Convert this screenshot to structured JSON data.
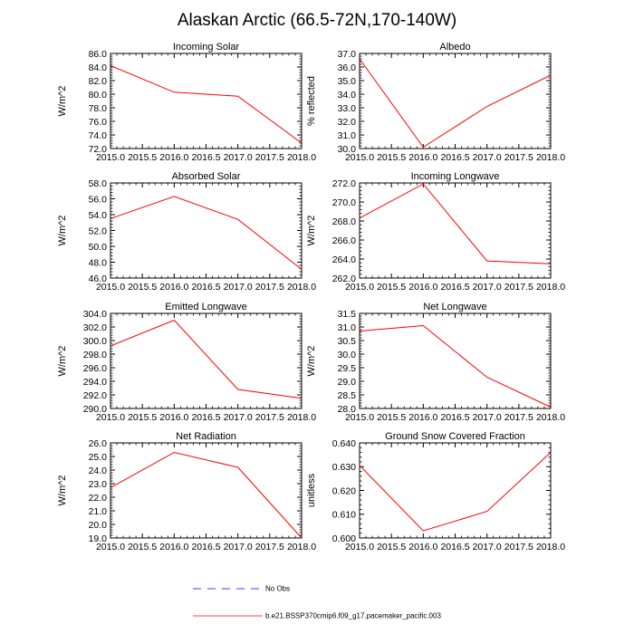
{
  "page_title": "Alaskan Arctic (66.5-72N,170-140W)",
  "colors": {
    "model_line": "#ff0000",
    "obs_line": "#0000ff",
    "axis": "#000000"
  },
  "legend": [
    {
      "label": "No Obs",
      "style": "dashed",
      "color": "#0000ff"
    },
    {
      "label": "b.e21.BSSP370cmip6.f09_g17.pacemaker_pacific.003",
      "style": "solid",
      "color": "#ff0000"
    }
  ],
  "chart_data": [
    {
      "type": "line",
      "title": "Incoming Solar",
      "ylabel": "W/m^2",
      "x": [
        2015,
        2016,
        2017,
        2018
      ],
      "xticks": [
        "2015.0",
        "2015.5",
        "2016.0",
        "2016.5",
        "2017.0",
        "2017.5",
        "2018.0"
      ],
      "xlim": [
        2015,
        2018
      ],
      "ylim": [
        72,
        86
      ],
      "yticks": [
        "72.0",
        "74.0",
        "76.0",
        "78.0",
        "80.0",
        "82.0",
        "84.0",
        "86.0"
      ],
      "series": [
        {
          "name": "b.e21.BSSP370cmip6.f09_g17.pacemaker_pacific.003",
          "values": [
            84.2,
            80.3,
            79.7,
            72.8
          ]
        }
      ]
    },
    {
      "type": "line",
      "title": "Albedo",
      "ylabel": "% reflected",
      "x": [
        2015,
        2016,
        2017,
        2018
      ],
      "xticks": [
        "2015.0",
        "2015.5",
        "2016.0",
        "2016.5",
        "2017.0",
        "2017.5",
        "2018.0"
      ],
      "xlim": [
        2015,
        2018
      ],
      "ylim": [
        30,
        37
      ],
      "yticks": [
        "30.0",
        "31.0",
        "32.0",
        "33.0",
        "34.0",
        "35.0",
        "36.0",
        "37.0"
      ],
      "series": [
        {
          "name": "b.e21.BSSP370cmip6.f09_g17.pacemaker_pacific.003",
          "values": [
            36.6,
            30.1,
            33.1,
            35.4
          ]
        }
      ]
    },
    {
      "type": "line",
      "title": "Absorbed Solar",
      "ylabel": "W/m^2",
      "x": [
        2015,
        2016,
        2017,
        2018
      ],
      "xticks": [
        "2015.0",
        "2015.5",
        "2016.0",
        "2016.5",
        "2017.0",
        "2017.5",
        "2018.0"
      ],
      "xlim": [
        2015,
        2018
      ],
      "ylim": [
        46,
        58
      ],
      "yticks": [
        "46.0",
        "48.0",
        "50.0",
        "52.0",
        "54.0",
        "56.0",
        "58.0"
      ],
      "series": [
        {
          "name": "b.e21.BSSP370cmip6.f09_g17.pacemaker_pacific.003",
          "values": [
            53.5,
            56.3,
            53.4,
            47.1
          ]
        }
      ]
    },
    {
      "type": "line",
      "title": "Incoming Longwave",
      "ylabel": "W/m^2",
      "x": [
        2015,
        2016,
        2017,
        2018
      ],
      "xticks": [
        "2015.0",
        "2015.5",
        "2016.0",
        "2016.5",
        "2017.0",
        "2017.5",
        "2018.0"
      ],
      "xlim": [
        2015,
        2018
      ],
      "ylim": [
        262,
        272
      ],
      "yticks": [
        "262.0",
        "264.0",
        "266.0",
        "268.0",
        "270.0",
        "272.0"
      ],
      "series": [
        {
          "name": "b.e21.BSSP370cmip6.f09_g17.pacemaker_pacific.003",
          "values": [
            268.3,
            271.9,
            263.8,
            263.5
          ]
        }
      ]
    },
    {
      "type": "line",
      "title": "Emitted Longwave",
      "ylabel": "W/m^2",
      "x": [
        2015,
        2016,
        2017,
        2018
      ],
      "xticks": [
        "2015.0",
        "2015.5",
        "2016.0",
        "2016.5",
        "2017.0",
        "2017.5",
        "2018.0"
      ],
      "xlim": [
        2015,
        2018
      ],
      "ylim": [
        290,
        304
      ],
      "yticks": [
        "290.0",
        "292.0",
        "294.0",
        "296.0",
        "298.0",
        "300.0",
        "302.0",
        "304.0"
      ],
      "series": [
        {
          "name": "b.e21.BSSP370cmip6.f09_g17.pacemaker_pacific.003",
          "values": [
            299.2,
            303.0,
            292.8,
            291.5
          ]
        }
      ]
    },
    {
      "type": "line",
      "title": "Net Longwave",
      "ylabel": "W/m^2",
      "x": [
        2015,
        2016,
        2017,
        2018
      ],
      "xticks": [
        "2015.0",
        "2015.5",
        "2016.0",
        "2016.5",
        "2017.0",
        "2017.5",
        "2018.0"
      ],
      "xlim": [
        2015,
        2018
      ],
      "ylim": [
        28,
        31.5
      ],
      "yticks": [
        "28.0",
        "28.5",
        "29.0",
        "29.5",
        "30.0",
        "30.5",
        "31.0",
        "31.5"
      ],
      "series": [
        {
          "name": "b.e21.BSSP370cmip6.f09_g17.pacemaker_pacific.003",
          "values": [
            30.85,
            31.05,
            29.15,
            28.05
          ]
        }
      ]
    },
    {
      "type": "line",
      "title": "Net Radiation",
      "ylabel": "W/m^2",
      "x": [
        2015,
        2016,
        2017,
        2018
      ],
      "xticks": [
        "2015.0",
        "2015.5",
        "2016.0",
        "2016.5",
        "2017.0",
        "2017.5",
        "2018.0"
      ],
      "xlim": [
        2015,
        2018
      ],
      "ylim": [
        19,
        26
      ],
      "yticks": [
        "19.0",
        "20.0",
        "21.0",
        "22.0",
        "23.0",
        "24.0",
        "25.0",
        "26.0"
      ],
      "series": [
        {
          "name": "b.e21.BSSP370cmip6.f09_g17.pacemaker_pacific.003",
          "values": [
            22.7,
            25.3,
            24.2,
            19.0
          ]
        }
      ]
    },
    {
      "type": "line",
      "title": "Ground Snow Covered Fraction",
      "ylabel": "unitless",
      "x": [
        2015,
        2016,
        2017,
        2018
      ],
      "xticks": [
        "2015.0",
        "2015.5",
        "2016.0",
        "2016.5",
        "2017.0",
        "2017.5",
        "2018.0"
      ],
      "xlim": [
        2015,
        2018
      ],
      "ylim": [
        0.6,
        0.64
      ],
      "yticks": [
        "0.600",
        "0.610",
        "0.620",
        "0.630",
        "0.640"
      ],
      "series": [
        {
          "name": "b.e21.BSSP370cmip6.f09_g17.pacemaker_pacific.003",
          "values": [
            0.6305,
            0.603,
            0.6112,
            0.636
          ]
        }
      ]
    }
  ]
}
